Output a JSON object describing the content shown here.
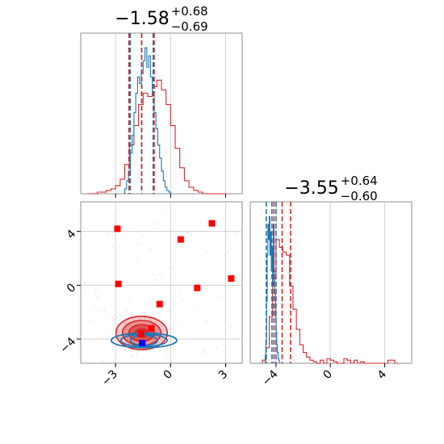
{
  "chart_data": {
    "type": "corner",
    "colors": {
      "red": "#d62728",
      "blue": "#1f77b4",
      "red_marker": "#ff0000",
      "blue_marker": "#0000ff"
    },
    "grid": true,
    "panels": {
      "hist_x": {
        "type": "histogram",
        "title": {
          "main": "−1.58",
          "sup": "+0.68",
          "sub": "−0.69"
        },
        "xlim": [
          -4.9,
          3.9
        ],
        "x_ticks": [
          -3,
          0,
          3
        ],
        "red_quantiles": [
          -2.27,
          -1.58,
          -0.9
        ],
        "blue_quantiles": [
          -2.2,
          -1.58,
          -0.95
        ],
        "red_hist": {
          "bin_start": -4.5,
          "bin_width": 0.25,
          "heights": [
            0,
            0,
            0.01,
            0.01,
            0.02,
            0.03,
            0.05,
            0.09,
            0.18,
            0.3,
            0.42,
            0.55,
            0.62,
            0.6,
            0.66,
            0.7,
            0.64,
            0.55,
            0.42,
            0.28,
            0.16,
            0.08,
            0.04,
            0.02,
            0.01,
            0,
            0,
            0,
            0,
            0
          ]
        },
        "blue_hist": {
          "bin_start": -2.5,
          "bin_width": 0.1,
          "heights": [
            0.03,
            0.08,
            0.14,
            0.25,
            0.36,
            0.5,
            0.62,
            0.72,
            0.68,
            0.74,
            0.82,
            0.9,
            0.78,
            0.85,
            0.72,
            0.62,
            0.5,
            0.4,
            0.3,
            0.22,
            0.14,
            0.08,
            0.04,
            0.02,
            0.01
          ]
        }
      },
      "hist_y": {
        "type": "histogram",
        "title": {
          "main": "−3.55",
          "sup": "+0.64",
          "sub": "−0.60"
        },
        "xlim": [
          -5.9,
          6.0
        ],
        "x_ticks": [
          -4,
          0,
          4
        ],
        "red_quantiles": [
          -4.15,
          -3.55,
          -2.92
        ],
        "blue_quantiles": [
          -4.72,
          -4.3,
          -4.0
        ],
        "red_hist": {
          "bin_start": -5.0,
          "bin_width": 0.25,
          "heights": [
            0.02,
            0.1,
            0.3,
            0.55,
            0.8,
            0.75,
            0.72,
            0.7,
            0.5,
            0.35,
            0.22,
            0.12,
            0.07,
            0.04,
            0.02,
            0.01,
            0,
            0.02,
            0,
            0.03,
            0.02,
            0.01,
            0,
            0,
            0.03,
            0.02,
            0,
            0.02,
            0,
            0.01,
            0,
            0,
            0,
            0,
            0,
            0,
            0,
            0.02,
            0.02,
            0
          ]
        },
        "blue_hist": {
          "bin_start": -4.8,
          "bin_width": 0.05,
          "heights": [
            0.05,
            0.15,
            0.4,
            0.7,
            0.9,
            0.8,
            0.95,
            0.7,
            0.85,
            0.6,
            0.75,
            0.5,
            0.9,
            0.6,
            0.45,
            0.3,
            0.2,
            0.12,
            0.07,
            0.03,
            0.02
          ]
        }
      },
      "joint": {
        "type": "scatter-contour",
        "xlim": [
          -4.9,
          3.9
        ],
        "ylim": [
          -5.8,
          6.2
        ],
        "x_ticks": [
          -3,
          0,
          3
        ],
        "y_ticks": [
          -4,
          0,
          4
        ],
        "red_center": [
          -1.58,
          -3.55
        ],
        "red_sigma": [
          0.7,
          0.62
        ],
        "blue_center": [
          -1.45,
          -4.1
        ],
        "blue_sigma": [
          1.05,
          0.18
        ],
        "red_markers": [
          [
            -2.9,
            4.2
          ],
          [
            -2.85,
            0.1
          ],
          [
            0.55,
            3.4
          ],
          [
            2.25,
            4.6
          ],
          [
            3.3,
            0.5
          ],
          [
            1.45,
            -0.2
          ],
          [
            -0.6,
            -1.4
          ],
          [
            -1.05,
            -3.2
          ],
          [
            -1.6,
            -3.6
          ]
        ],
        "blue_markers": [
          [
            -1.55,
            -4.3
          ]
        ]
      }
    }
  }
}
